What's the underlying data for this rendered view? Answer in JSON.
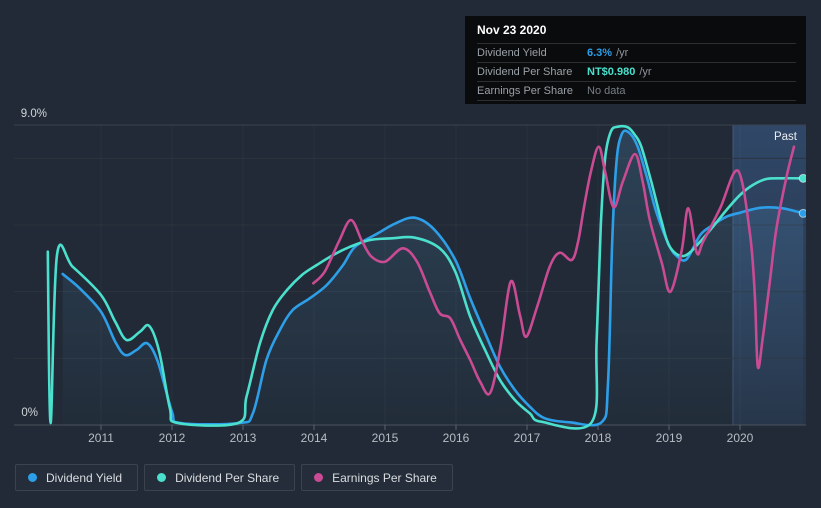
{
  "tooltip": {
    "date": "Nov 23 2020",
    "rows": [
      {
        "label": "Dividend Yield",
        "value": "6.3%",
        "suffix": "/yr",
        "color": "#2d9fe8"
      },
      {
        "label": "Dividend Per Share",
        "value": "NT$0.980",
        "suffix": "/yr",
        "color": "#4ae0cd"
      },
      {
        "label": "Earnings Per Share",
        "value": "No data",
        "suffix": "",
        "color": "#787f88"
      }
    ]
  },
  "axis": {
    "y_top_label": "9.0%",
    "y_bottom_label": "0%"
  },
  "past_label": "Past",
  "legend": {
    "items": [
      {
        "label": "Dividend Yield",
        "color": "#2d9fe8"
      },
      {
        "label": "Dividend Per Share",
        "color": "#4ae0cd"
      },
      {
        "label": "Earnings Per Share",
        "color": "#c94b93"
      }
    ]
  },
  "chart_data": {
    "type": "line",
    "title": "Dividend history",
    "y_unit": "%",
    "x_range": [
      2010.2,
      2020.92
    ],
    "y_range": [
      0,
      9
    ],
    "y_gridlines": [
      0,
      2,
      4,
      6,
      8,
      9
    ],
    "x_ticks": [
      2011,
      2012,
      2013,
      2014,
      2015,
      2016,
      2017,
      2018,
      2019,
      2020
    ],
    "grid": true,
    "legend_position": "bottom-left",
    "past_region_start": 2019.9,
    "series": [
      {
        "name": "Dividend Yield",
        "color": "#2d9fe8",
        "end_dot": true,
        "fill": true,
        "points": [
          [
            2010.46,
            4.53
          ],
          [
            2010.7,
            4.1
          ],
          [
            2011.0,
            3.4
          ],
          [
            2011.2,
            2.5
          ],
          [
            2011.34,
            2.1
          ],
          [
            2011.5,
            2.25
          ],
          [
            2011.65,
            2.45
          ],
          [
            2011.8,
            1.9
          ],
          [
            2012.0,
            0.4
          ],
          [
            2012.12,
            0.06
          ],
          [
            2012.95,
            0.06
          ],
          [
            2013.14,
            0.35
          ],
          [
            2013.33,
            1.95
          ],
          [
            2013.52,
            2.85
          ],
          [
            2013.7,
            3.45
          ],
          [
            2013.94,
            3.8
          ],
          [
            2014.18,
            4.2
          ],
          [
            2014.41,
            4.8
          ],
          [
            2014.58,
            5.35
          ],
          [
            2014.9,
            5.75
          ],
          [
            2015.15,
            6.05
          ],
          [
            2015.42,
            6.22
          ],
          [
            2015.7,
            5.85
          ],
          [
            2015.99,
            4.95
          ],
          [
            2016.2,
            3.8
          ],
          [
            2016.41,
            2.75
          ],
          [
            2016.62,
            1.75
          ],
          [
            2016.83,
            1.05
          ],
          [
            2017.04,
            0.55
          ],
          [
            2017.25,
            0.2
          ],
          [
            2017.6,
            0.08
          ],
          [
            2018.05,
            0.08
          ],
          [
            2018.14,
            1.2
          ],
          [
            2018.2,
            5.5
          ],
          [
            2018.26,
            7.9
          ],
          [
            2018.33,
            8.7
          ],
          [
            2018.42,
            8.8
          ],
          [
            2018.55,
            8.4
          ],
          [
            2018.68,
            7.5
          ],
          [
            2018.82,
            6.4
          ],
          [
            2019.0,
            5.4
          ],
          [
            2019.12,
            5.05
          ],
          [
            2019.25,
            4.98
          ],
          [
            2019.44,
            5.7
          ],
          [
            2019.62,
            6.0
          ],
          [
            2019.81,
            6.25
          ],
          [
            2020.0,
            6.37
          ],
          [
            2020.3,
            6.52
          ],
          [
            2020.6,
            6.5
          ],
          [
            2020.89,
            6.35
          ]
        ]
      },
      {
        "name": "Dividend Per Share",
        "color": "#4ae0cd",
        "end_dot": true,
        "fill": false,
        "points": [
          [
            2010.25,
            5.2
          ],
          [
            2010.29,
            0.06
          ],
          [
            2010.38,
            5.1
          ],
          [
            2010.6,
            4.75
          ],
          [
            2011.0,
            3.9
          ],
          [
            2011.2,
            3.1
          ],
          [
            2011.36,
            2.55
          ],
          [
            2011.55,
            2.8
          ],
          [
            2011.68,
            2.97
          ],
          [
            2011.82,
            2.2
          ],
          [
            2011.97,
            0.5
          ],
          [
            2012.08,
            0.06
          ],
          [
            2012.93,
            0.06
          ],
          [
            2013.05,
            0.85
          ],
          [
            2013.24,
            2.46
          ],
          [
            2013.42,
            3.45
          ],
          [
            2013.62,
            4.05
          ],
          [
            2013.83,
            4.5
          ],
          [
            2014.04,
            4.8
          ],
          [
            2014.27,
            5.1
          ],
          [
            2014.51,
            5.35
          ],
          [
            2014.79,
            5.55
          ],
          [
            2015.1,
            5.6
          ],
          [
            2015.42,
            5.62
          ],
          [
            2015.77,
            5.3
          ],
          [
            2015.99,
            4.6
          ],
          [
            2016.2,
            3.25
          ],
          [
            2016.41,
            2.25
          ],
          [
            2016.62,
            1.35
          ],
          [
            2016.83,
            0.75
          ],
          [
            2017.04,
            0.35
          ],
          [
            2017.2,
            0.1
          ],
          [
            2017.91,
            0.08
          ],
          [
            2017.98,
            2.5
          ],
          [
            2018.04,
            6.0
          ],
          [
            2018.1,
            8.0
          ],
          [
            2018.18,
            8.8
          ],
          [
            2018.28,
            8.95
          ],
          [
            2018.42,
            8.93
          ],
          [
            2018.52,
            8.7
          ],
          [
            2018.61,
            8.35
          ],
          [
            2018.75,
            7.3
          ],
          [
            2018.89,
            6.15
          ],
          [
            2019.01,
            5.35
          ],
          [
            2019.21,
            5.07
          ],
          [
            2019.44,
            5.5
          ],
          [
            2019.62,
            5.95
          ],
          [
            2019.81,
            6.45
          ],
          [
            2020.0,
            6.9
          ],
          [
            2020.18,
            7.2
          ],
          [
            2020.37,
            7.38
          ],
          [
            2020.6,
            7.4
          ],
          [
            2020.89,
            7.4
          ]
        ]
      },
      {
        "name": "Earnings Per Share",
        "color": "#c94b93",
        "end_dot": false,
        "fill": false,
        "points": [
          [
            2013.99,
            4.25
          ],
          [
            2014.15,
            4.6
          ],
          [
            2014.35,
            5.5
          ],
          [
            2014.52,
            6.15
          ],
          [
            2014.68,
            5.5
          ],
          [
            2014.81,
            5.05
          ],
          [
            2015.0,
            4.9
          ],
          [
            2015.25,
            5.3
          ],
          [
            2015.45,
            4.9
          ],
          [
            2015.63,
            4.0
          ],
          [
            2015.77,
            3.35
          ],
          [
            2015.92,
            3.2
          ],
          [
            2016.06,
            2.55
          ],
          [
            2016.2,
            1.95
          ],
          [
            2016.34,
            1.3
          ],
          [
            2016.48,
            0.96
          ],
          [
            2016.62,
            2.25
          ],
          [
            2016.77,
            4.3
          ],
          [
            2016.9,
            3.3
          ],
          [
            2016.99,
            2.65
          ],
          [
            2017.15,
            3.6
          ],
          [
            2017.32,
            4.75
          ],
          [
            2017.46,
            5.17
          ],
          [
            2017.63,
            4.95
          ],
          [
            2017.72,
            5.5
          ],
          [
            2017.8,
            6.5
          ],
          [
            2017.9,
            7.6
          ],
          [
            2018.01,
            8.35
          ],
          [
            2018.1,
            7.6
          ],
          [
            2018.22,
            6.53
          ],
          [
            2018.35,
            7.3
          ],
          [
            2018.52,
            8.13
          ],
          [
            2018.63,
            7.3
          ],
          [
            2018.73,
            6.15
          ],
          [
            2018.9,
            4.85
          ],
          [
            2019.02,
            4.0
          ],
          [
            2019.18,
            5.25
          ],
          [
            2019.27,
            6.5
          ],
          [
            2019.39,
            5.17
          ],
          [
            2019.48,
            5.5
          ],
          [
            2019.72,
            6.5
          ],
          [
            2019.97,
            7.63
          ],
          [
            2020.14,
            5.75
          ],
          [
            2020.21,
            3.85
          ],
          [
            2020.25,
            1.75
          ],
          [
            2020.32,
            2.6
          ],
          [
            2020.42,
            4.3
          ],
          [
            2020.51,
            5.85
          ],
          [
            2020.65,
            7.4
          ],
          [
            2020.76,
            8.35
          ]
        ]
      }
    ]
  }
}
